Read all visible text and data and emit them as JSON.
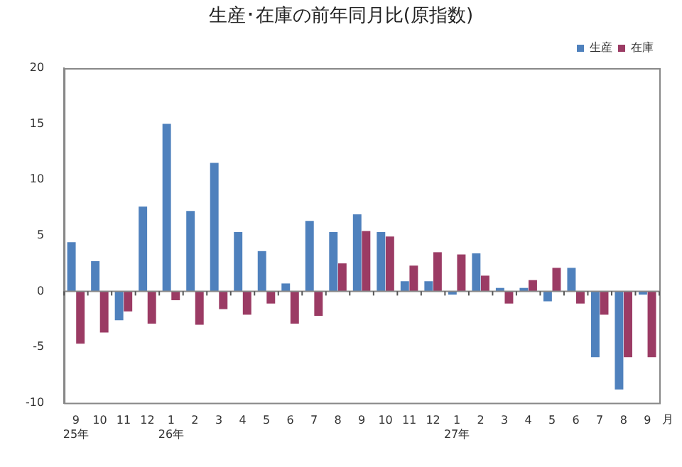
{
  "chart_data": {
    "type": "bar",
    "title": "生産･在庫の前年同月比(原指数)",
    "xlabel": "月",
    "categories": [
      "9\n25年",
      "10",
      "11",
      "12",
      "1\n26年",
      "2",
      "3",
      "4",
      "5",
      "6",
      "7",
      "8",
      "9",
      "10",
      "11",
      "12",
      "1\n27年",
      "2",
      "3",
      "4",
      "5",
      "6",
      "7",
      "8",
      "9"
    ],
    "series": [
      {
        "name": "生産",
        "color": "#4f81bd",
        "values": [
          4.4,
          2.7,
          -2.6,
          7.6,
          15.0,
          7.2,
          11.5,
          5.3,
          3.6,
          0.7,
          6.3,
          5.3,
          6.9,
          5.3,
          0.9,
          0.9,
          -0.3,
          3.4,
          0.3,
          0.3,
          -0.9,
          2.1,
          -5.9,
          -8.8,
          -0.3
        ]
      },
      {
        "name": "在庫",
        "color": "#9b3b64",
        "values": [
          -4.7,
          -3.7,
          -1.8,
          -2.9,
          -0.8,
          -3.0,
          -1.6,
          -2.1,
          -1.1,
          -2.9,
          -2.2,
          2.5,
          5.4,
          4.9,
          2.3,
          3.5,
          3.3,
          1.4,
          -1.1,
          1.0,
          2.1,
          -1.1,
          -2.1,
          -5.9,
          -5.9
        ]
      }
    ],
    "ylim": [
      -10,
      20
    ],
    "yticks": [
      -10,
      -5,
      0,
      5,
      10,
      15,
      20
    ],
    "legend": "top right"
  }
}
